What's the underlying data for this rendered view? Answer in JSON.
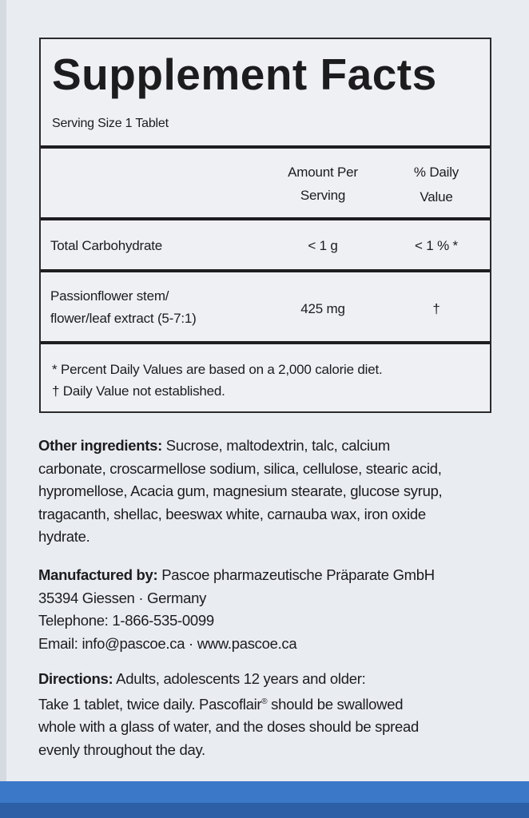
{
  "facts": {
    "title": "Supplement Facts",
    "serving_size": "Serving Size 1 Tablet",
    "header_amount_1": "Amount Per",
    "header_amount_2": "Serving",
    "header_dv_1": "% Daily",
    "header_dv_2": "Value",
    "rows": [
      {
        "name_1": "Total Carbohydrate",
        "name_2": "",
        "amount": "< 1 g",
        "dv": "< 1 % *"
      },
      {
        "name_1": "Passionflower stem/",
        "name_2": "flower/leaf extract (5-7:1)",
        "amount": "425  mg",
        "dv": "†"
      }
    ],
    "footnote_1": "*  Percent Daily Values are based on a 2,000 calorie diet.",
    "footnote_2": "† Daily Value not established."
  },
  "ingredients": {
    "label": "Other ingredients:",
    "lines": [
      " Sucrose, maltodextrin, talc, calcium",
      "carbonate, croscarmellose sodium, silica, cellulose, stearic acid,",
      "hypromellose, Acacia gum, magnesium stearate, glucose syrup,",
      "tragacanth, shellac, beeswax white, carnauba wax, iron oxide",
      "hydrate."
    ]
  },
  "manufacturer": {
    "label": "Manufactured by:",
    "name": " Pascoe pharmazeutische Präparate GmbH",
    "address": "35394 Giessen · Germany",
    "telephone": "Telephone: 1-866-535-0099",
    "contact": "Email: info@pascoe.ca · www.pascoe.ca"
  },
  "directions": {
    "label": "Directions:",
    "line1": " Adults, adolescents 12 years and older:",
    "line2a": "Take 1 tablet, twice daily. Pascoflair",
    "reg": "®",
    "line2b": " should be swallowed",
    "line3": "whole with a glass of water, and the doses should be spread",
    "line4": "evenly throughout the day."
  },
  "colors": {
    "background": "#e9ecf1",
    "band": "#3b78c8",
    "text": "#1c1c1e"
  }
}
